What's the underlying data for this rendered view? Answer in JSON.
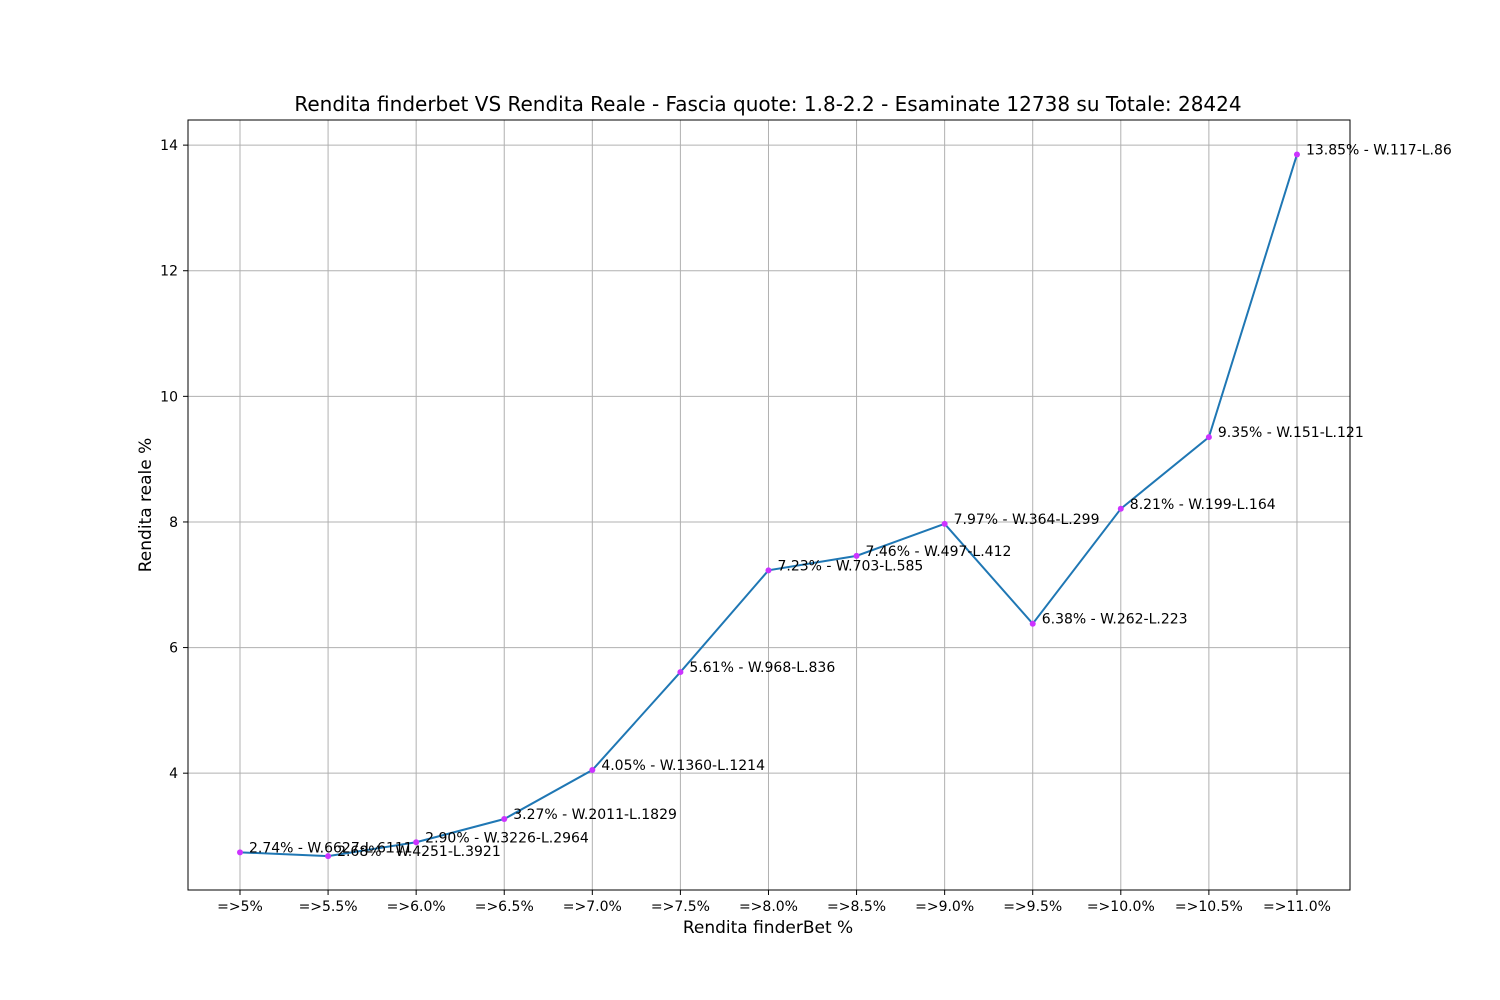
{
  "chart_data": {
    "type": "line",
    "title": "Rendita finderbet VS Rendita Reale - Fascia quote: 1.8-2.2 - Esaminate 12738 su Totale: 28424",
    "xlabel": "Rendita finderBet %",
    "ylabel": "Rendita reale %",
    "categories": [
      "=>5%",
      "=>5.5%",
      "=>6.0%",
      "=>6.5%",
      "=>7.0%",
      "=>7.5%",
      "=>8.0%",
      "=>8.5%",
      "=>9.0%",
      "=>9.5%",
      "=>10.0%",
      "=>10.5%",
      "=>11.0%"
    ],
    "values": [
      2.74,
      2.68,
      2.9,
      3.27,
      4.05,
      5.61,
      7.23,
      7.46,
      7.97,
      6.38,
      8.21,
      9.35,
      13.85
    ],
    "labels": [
      "2.74% - W.6627-L.6111",
      "2.68% - W.4251-L.3921",
      "2.90% - W.3226-L.2964",
      "3.27% - W.2011-L.1829",
      "4.05% - W.1360-L.1214",
      "5.61% - W.968-L.836",
      "7.23% - W.703-L.585",
      "7.46% - W.497-L.412",
      "7.97% - W.364-L.299",
      "6.38% - W.262-L.223",
      "8.21% - W.199-L.164",
      "9.35% - W.151-L.121",
      "13.85% - W.117-L.86"
    ],
    "yticks": [
      "4",
      "6",
      "8",
      "10",
      "12",
      "14"
    ],
    "ytick_values": [
      4,
      6,
      8,
      10,
      12,
      14
    ],
    "ylim": [
      2.14,
      14.4
    ],
    "grid": true,
    "line_color": "#1f77b4",
    "marker_color": "#cc33ff"
  }
}
